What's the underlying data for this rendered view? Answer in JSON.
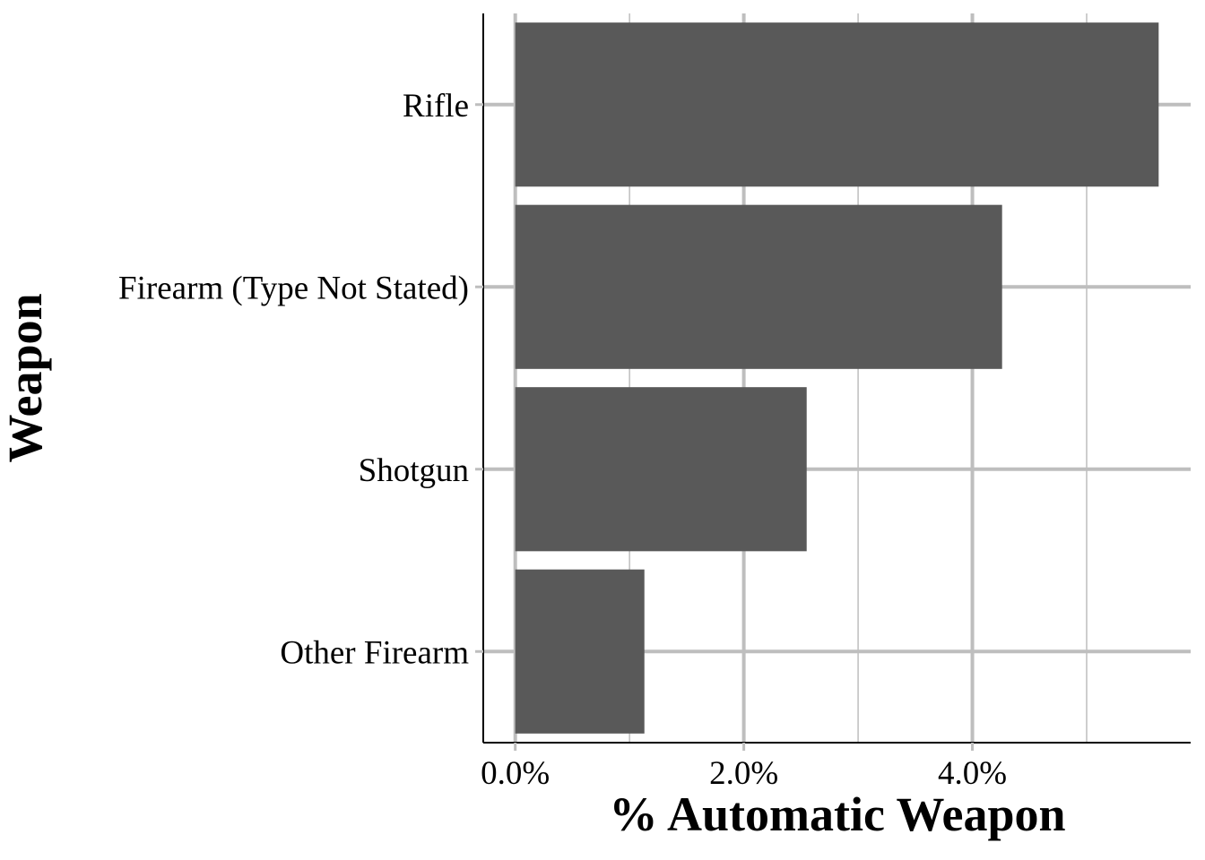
{
  "chart_data": {
    "type": "bar",
    "orientation": "horizontal",
    "categories": [
      "Rifle",
      "Firearm (Type Not Stated)",
      "Shotgun",
      "Other Firearm"
    ],
    "values": [
      5.63,
      4.26,
      2.55,
      1.13
    ],
    "value_unit": "%",
    "xlabel": "% Automatic Weapon",
    "ylabel": "Weapon",
    "xlim": [
      -0.28,
      5.91
    ],
    "x_ticks": [
      0,
      2,
      4
    ],
    "x_tick_labels": [
      "0.0%",
      "2.0%",
      "4.0%"
    ],
    "x_minor_ticks": [
      1,
      3,
      5
    ],
    "grid": true,
    "legend": "none",
    "colors": {
      "bar": "#595959",
      "grid": "#bebebe",
      "axis": "#000000",
      "background": "#ffffff"
    }
  }
}
